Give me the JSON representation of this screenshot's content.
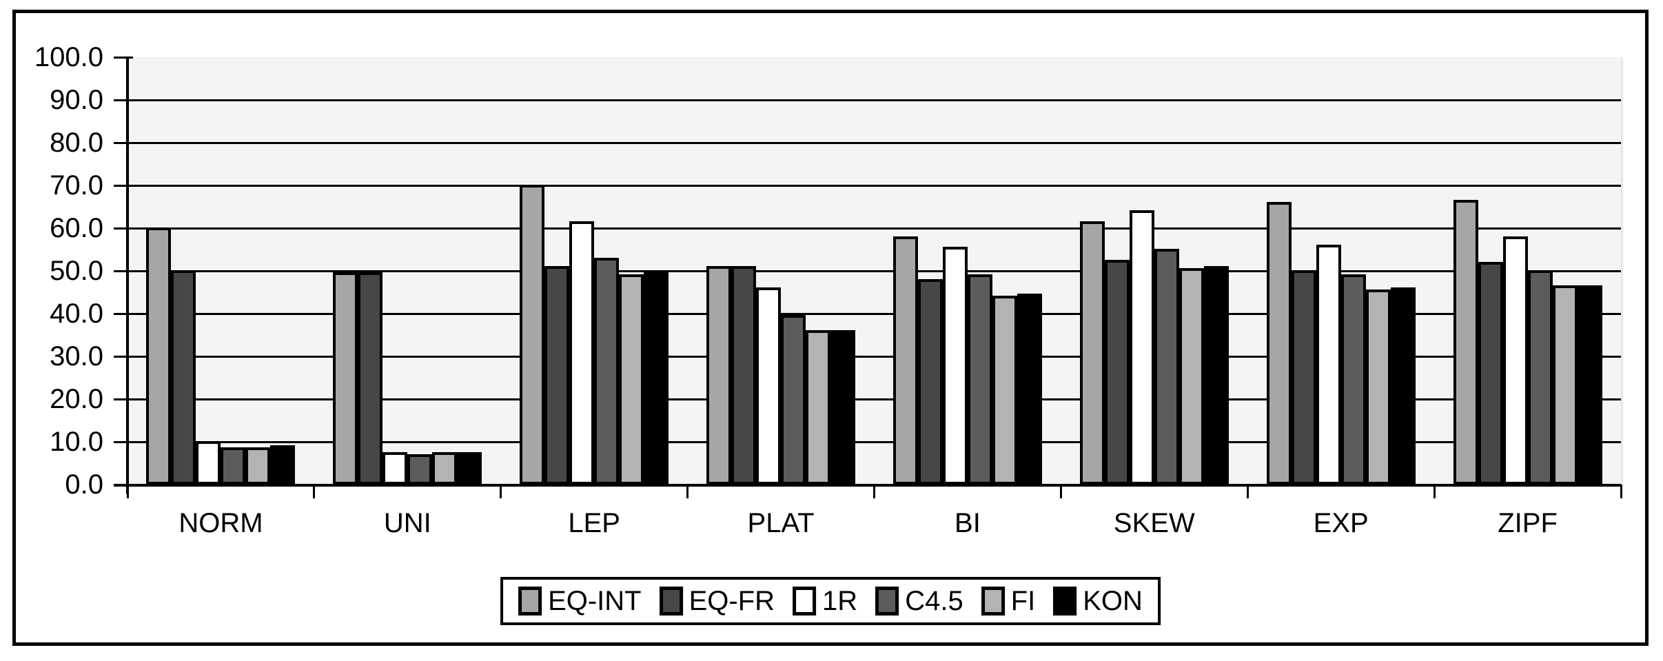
{
  "chart_data": {
    "type": "bar",
    "title": "",
    "categories": [
      "NORM",
      "UNI",
      "LEP",
      "PLAT",
      "BI",
      "SKEW",
      "EXP",
      "ZIPF"
    ],
    "series": [
      {
        "name": "EQ-INT",
        "color": "#a6a6a6",
        "values": [
          59.5,
          49.0,
          69.5,
          50.5,
          57.5,
          61.0,
          65.5,
          66.0
        ]
      },
      {
        "name": "EQ-FR",
        "color": "#474747",
        "values": [
          49.5,
          49.0,
          50.5,
          50.5,
          47.5,
          52.0,
          49.5,
          51.5
        ]
      },
      {
        "name": "1R",
        "color": "#ffffff",
        "values": [
          9.5,
          7.0,
          61.0,
          45.5,
          55.0,
          63.5,
          55.5,
          57.5
        ]
      },
      {
        "name": "C4.5",
        "color": "#5c5c5c",
        "values": [
          8.0,
          6.5,
          52.5,
          39.0,
          48.5,
          54.5,
          48.5,
          49.5
        ]
      },
      {
        "name": "FI",
        "color": "#b3b3b3",
        "values": [
          8.0,
          7.0,
          48.5,
          35.5,
          43.5,
          50.0,
          45.0,
          46.0
        ]
      },
      {
        "name": "KON",
        "color": "#000000",
        "values": [
          8.5,
          7.0,
          49.5,
          35.5,
          44.0,
          50.5,
          45.5,
          46.0
        ]
      }
    ],
    "xlabel": "",
    "ylabel": "",
    "ylim": [
      0,
      100
    ],
    "ytick_step": 10,
    "ytick_format": "one-decimal",
    "grid": true,
    "gridline_color": "#000000",
    "plot_background": "#f4f4f4",
    "axis_color": "#000000",
    "legend_position": "bottom",
    "legend_labels": [
      "EQ-INT",
      "EQ-FR",
      "1R",
      "C4.5",
      "FI",
      "KON"
    ]
  }
}
